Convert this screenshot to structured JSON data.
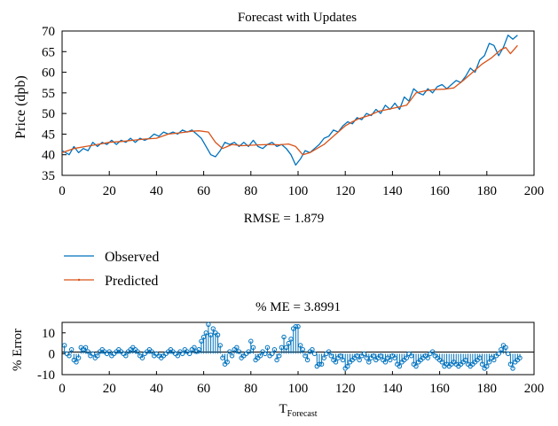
{
  "colors": {
    "observed": "#0072bd",
    "predicted": "#d95319",
    "error": "#0072bd",
    "axis": "#000000",
    "background": "#ffffff"
  },
  "chart_data": [
    {
      "type": "line",
      "title": "Forecast with Updates",
      "ylabel": "Price (dpb)",
      "xlabel": "",
      "xlim": [
        0,
        200
      ],
      "ylim": [
        35,
        70
      ],
      "xticks": [
        "0",
        "20",
        "40",
        "60",
        "80",
        "100",
        "120",
        "140",
        "160",
        "180",
        "200"
      ],
      "yticks": [
        "35",
        "40",
        "45",
        "50",
        "55",
        "60",
        "65",
        "70"
      ],
      "annotation": "RMSE = 1.879",
      "grid": false,
      "series": [
        {
          "name": "Observed",
          "color": "#0072bd",
          "points": [
            [
              0,
              41
            ],
            [
              3,
              40
            ],
            [
              5,
              42
            ],
            [
              7,
              40.5
            ],
            [
              9,
              41.5
            ],
            [
              11,
              41
            ],
            [
              13,
              43
            ],
            [
              15,
              42
            ],
            [
              17,
              43
            ],
            [
              19,
              42.5
            ],
            [
              21,
              43.5
            ],
            [
              23,
              42.5
            ],
            [
              25,
              43.5
            ],
            [
              27,
              43
            ],
            [
              29,
              44
            ],
            [
              31,
              43
            ],
            [
              33,
              44
            ],
            [
              35,
              43.5
            ],
            [
              37,
              44
            ],
            [
              39,
              45
            ],
            [
              41,
              44.5
            ],
            [
              43,
              45.5
            ],
            [
              45,
              45
            ],
            [
              47,
              45.5
            ],
            [
              49,
              45
            ],
            [
              51,
              46
            ],
            [
              53,
              45.5
            ],
            [
              55,
              46
            ],
            [
              57,
              45
            ],
            [
              59,
              44
            ],
            [
              61,
              42
            ],
            [
              63,
              40
            ],
            [
              65,
              39.5
            ],
            [
              67,
              41
            ],
            [
              69,
              43
            ],
            [
              71,
              42.5
            ],
            [
              73,
              43
            ],
            [
              75,
              42
            ],
            [
              77,
              43
            ],
            [
              79,
              42
            ],
            [
              81,
              43.5
            ],
            [
              83,
              42
            ],
            [
              85,
              41.5
            ],
            [
              87,
              42.5
            ],
            [
              89,
              43
            ],
            [
              91,
              42
            ],
            [
              93,
              42.5
            ],
            [
              95,
              41.5
            ],
            [
              97,
              40
            ],
            [
              99,
              37.5
            ],
            [
              101,
              39
            ],
            [
              103,
              41
            ],
            [
              105,
              40.5
            ],
            [
              107,
              41.5
            ],
            [
              109,
              42.5
            ],
            [
              111,
              44
            ],
            [
              113,
              44.5
            ],
            [
              115,
              46
            ],
            [
              117,
              45.5
            ],
            [
              119,
              47
            ],
            [
              121,
              48
            ],
            [
              123,
              47.5
            ],
            [
              125,
              49
            ],
            [
              127,
              48.5
            ],
            [
              129,
              50
            ],
            [
              131,
              49.5
            ],
            [
              133,
              51
            ],
            [
              135,
              50
            ],
            [
              137,
              52
            ],
            [
              139,
              51
            ],
            [
              141,
              52.5
            ],
            [
              143,
              51
            ],
            [
              145,
              54
            ],
            [
              147,
              53
            ],
            [
              149,
              56
            ],
            [
              151,
              55
            ],
            [
              153,
              54.5
            ],
            [
              155,
              56
            ],
            [
              157,
              55
            ],
            [
              159,
              56.5
            ],
            [
              161,
              57
            ],
            [
              163,
              56
            ],
            [
              165,
              57
            ],
            [
              167,
              58
            ],
            [
              169,
              57.5
            ],
            [
              171,
              59
            ],
            [
              173,
              61
            ],
            [
              175,
              60
            ],
            [
              177,
              63
            ],
            [
              179,
              64
            ],
            [
              181,
              67
            ],
            [
              183,
              66.5
            ],
            [
              185,
              64
            ],
            [
              187,
              66
            ],
            [
              189,
              69
            ],
            [
              191,
              68
            ],
            [
              193,
              69
            ]
          ]
        },
        {
          "name": "Predicted",
          "color": "#d95319",
          "points": [
            [
              0,
              40.5
            ],
            [
              5,
              41.5
            ],
            [
              10,
              42
            ],
            [
              15,
              42.5
            ],
            [
              20,
              43
            ],
            [
              25,
              43.2
            ],
            [
              30,
              43.5
            ],
            [
              35,
              43.8
            ],
            [
              40,
              44
            ],
            [
              45,
              45
            ],
            [
              50,
              45.3
            ],
            [
              55,
              45.7
            ],
            [
              58,
              45.8
            ],
            [
              62,
              45.5
            ],
            [
              65,
              43
            ],
            [
              68,
              41.5
            ],
            [
              72,
              42.5
            ],
            [
              76,
              42.2
            ],
            [
              80,
              42.3
            ],
            [
              84,
              42.4
            ],
            [
              88,
              42.5
            ],
            [
              92,
              42.4
            ],
            [
              96,
              42.6
            ],
            [
              99,
              42
            ],
            [
              102,
              40
            ],
            [
              105,
              40.5
            ],
            [
              108,
              41.5
            ],
            [
              111,
              42.5
            ],
            [
              114,
              44
            ],
            [
              117,
              45.5
            ],
            [
              120,
              47
            ],
            [
              123,
              48
            ],
            [
              126,
              48.8
            ],
            [
              130,
              49.5
            ],
            [
              134,
              50.5
            ],
            [
              138,
              51
            ],
            [
              142,
              51.5
            ],
            [
              146,
              52
            ],
            [
              150,
              55
            ],
            [
              154,
              55.5
            ],
            [
              158,
              55.8
            ],
            [
              162,
              55.9
            ],
            [
              166,
              56.2
            ],
            [
              170,
              58
            ],
            [
              174,
              60
            ],
            [
              178,
              62
            ],
            [
              182,
              63.5
            ],
            [
              186,
              65.5
            ],
            [
              188,
              66
            ],
            [
              190,
              64.5
            ],
            [
              193,
              66.5
            ]
          ]
        }
      ]
    },
    {
      "type": "stem",
      "title": "% ME = 3.8991",
      "ylabel": "% Error",
      "xlabel_main": "T",
      "xlabel_sub": "Forecast",
      "xlim": [
        0,
        200
      ],
      "ylim": [
        -10,
        15
      ],
      "xticks": [
        "0",
        "20",
        "40",
        "60",
        "80",
        "100",
        "120",
        "140",
        "160",
        "180",
        "200"
      ],
      "yticks": [
        "10",
        "0",
        "-10"
      ],
      "color": "#0072bd",
      "values": [
        4,
        0,
        -1,
        2,
        -3,
        -4,
        -2,
        3,
        2,
        3,
        1,
        -1,
        0,
        -2,
        -1,
        1,
        2,
        1,
        0,
        1,
        -1,
        0,
        1,
        2,
        1,
        0,
        -1,
        1,
        2,
        3,
        2,
        1,
        -1,
        -2,
        0,
        1,
        2,
        1,
        -1,
        0,
        -1,
        -2,
        -1,
        0,
        1,
        2,
        1,
        0,
        -1,
        1,
        0,
        2,
        1,
        0,
        2,
        3,
        1,
        2,
        6,
        8,
        10,
        14,
        9,
        12,
        10,
        9,
        4,
        -2,
        -5,
        -4,
        1,
        -1,
        2,
        3,
        1,
        -2,
        -1,
        0,
        1,
        6,
        3,
        -3,
        -2,
        -1,
        1,
        0,
        3,
        -1,
        0,
        2,
        -3,
        -1,
        3,
        8,
        3,
        5,
        7,
        12,
        13,
        13,
        4,
        2,
        -1,
        -3,
        1,
        2,
        0,
        -6,
        -5,
        -5,
        -2,
        0,
        1,
        -1,
        -3,
        -4,
        -2,
        -1,
        -3,
        -7,
        -6,
        -4,
        -3,
        -2,
        -1,
        -3,
        -1,
        0,
        -2,
        -4,
        -2,
        -1,
        -3,
        -2,
        -1,
        -3,
        -4,
        -2,
        -3,
        -1,
        -2,
        -5,
        -6,
        -4,
        -3,
        -2,
        0,
        -1,
        -5,
        -6,
        -4,
        -3,
        -2,
        -1,
        -2,
        0,
        1,
        -1,
        -2,
        -3,
        -4,
        -6,
        -5,
        -6,
        -5,
        -4,
        -5,
        -6,
        -5,
        -4,
        -3,
        -5,
        -6,
        -5,
        -4,
        -3,
        -2,
        -5,
        -7,
        -6,
        -4,
        -2,
        -3,
        -1,
        0,
        2,
        4,
        3,
        0,
        -5,
        -7,
        -4,
        -3,
        -2
      ]
    }
  ],
  "legend": {
    "items": [
      {
        "label": "Observed",
        "color": "#0072bd"
      },
      {
        "label": "Predicted",
        "color": "#d95319"
      }
    ]
  }
}
